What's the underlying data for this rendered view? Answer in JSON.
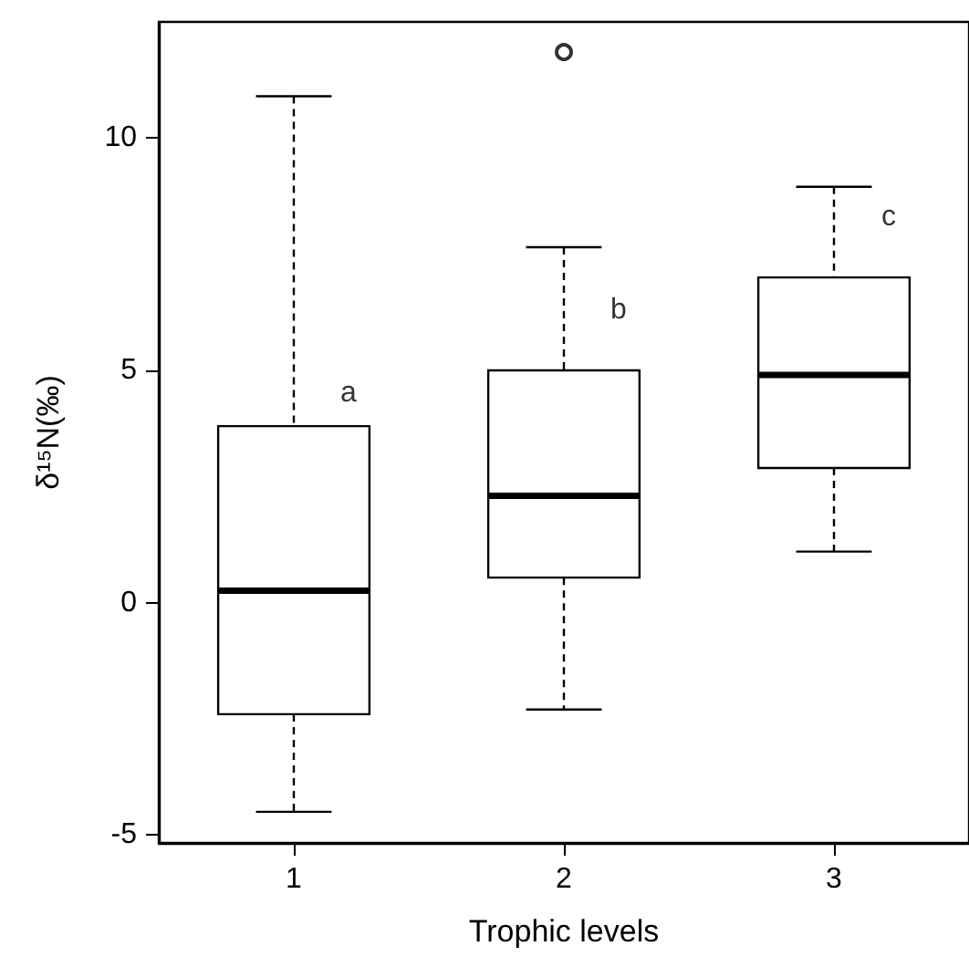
{
  "chart_data": {
    "type": "box",
    "xlabel": "Trophic levels",
    "ylabel": "δ¹⁵N(‰)",
    "categories": [
      "1",
      "2",
      "3"
    ],
    "boxes": [
      {
        "low": -4.5,
        "q1": -2.4,
        "median": 0.26,
        "q3": 3.8,
        "high": 10.9
      },
      {
        "low": -2.3,
        "q1": 0.54,
        "median": 2.3,
        "q3": 5.0,
        "high": 7.65,
        "outliers": [
          11.85
        ]
      },
      {
        "low": 1.1,
        "q1": 2.9,
        "median": 4.9,
        "q3": 7.0,
        "high": 8.95
      }
    ],
    "ylim": [
      -5.17,
      12.5
    ],
    "yticks": [
      -5,
      0,
      5,
      10
    ],
    "grid": false,
    "annotations": [
      {
        "text": "a",
        "x": "1",
        "y": 4.5
      },
      {
        "text": "b",
        "x": "2",
        "y": 6.3
      },
      {
        "text": "c",
        "x": "3",
        "y": 8.3
      }
    ]
  }
}
